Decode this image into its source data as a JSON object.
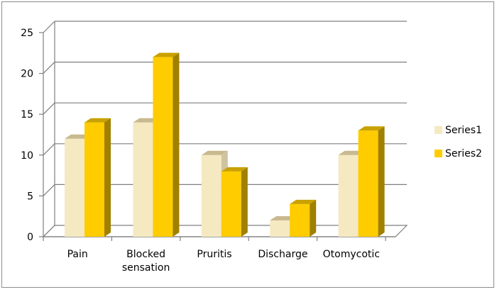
{
  "chart_data": {
    "type": "bar",
    "categories": [
      "Pain",
      "Blocked sensation",
      "Pruritis",
      "Discharge",
      "Otomycotic"
    ],
    "category_lines": [
      [
        "Pain"
      ],
      [
        "Blocked",
        "sensation"
      ],
      [
        "Pruritis"
      ],
      [
        "Discharge"
      ],
      [
        "Otomycotic"
      ]
    ],
    "series": [
      {
        "name": "Series1",
        "values": [
          12,
          14,
          10,
          2,
          10
        ],
        "color": "#f5e9c2",
        "top_color": "#c9b98f",
        "side_color": "#cfc3a0"
      },
      {
        "name": "Series2",
        "values": [
          14,
          22,
          8,
          4,
          13
        ],
        "color": "#ffcc00",
        "top_color": "#c9a100",
        "side_color": "#a08000"
      }
    ],
    "ylim": [
      0,
      25
    ],
    "yticks": [
      "0",
      "5",
      "10",
      "15",
      "20",
      "25"
    ],
    "ytick_values": [
      0,
      5,
      10,
      15,
      20,
      25
    ],
    "legend_position": "right",
    "grid": true,
    "three_d": true
  }
}
